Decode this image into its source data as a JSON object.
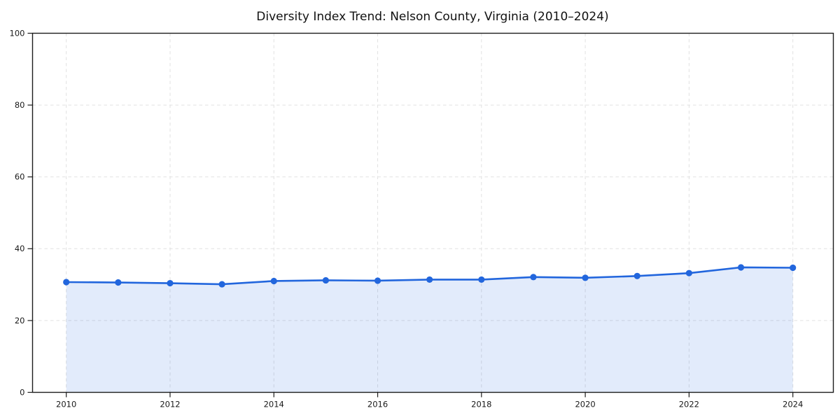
{
  "page": {
    "background": "#ffffff"
  },
  "chart_data": {
    "type": "line",
    "subtype": "line-with-area-fill-and-markers",
    "title": "Diversity Index Trend: Nelson County, Virginia (2010–2024)",
    "xlabel": "",
    "ylabel": "",
    "x": [
      2010,
      2011,
      2012,
      2013,
      2014,
      2015,
      2016,
      2017,
      2018,
      2019,
      2020,
      2021,
      2022,
      2023,
      2024
    ],
    "series": [
      {
        "name": "Diversity Index",
        "values": [
          30.7,
          30.6,
          30.4,
          30.1,
          31.0,
          31.2,
          31.1,
          31.4,
          31.4,
          32.1,
          31.9,
          32.4,
          33.2,
          34.8,
          34.7
        ]
      }
    ],
    "xlim": [
      2009.35,
      2024.78
    ],
    "ylim": [
      0,
      100
    ],
    "x_ticks": [
      2010,
      2012,
      2014,
      2016,
      2018,
      2020,
      2022,
      2024
    ],
    "y_ticks": [
      0,
      20,
      40,
      60,
      80,
      100
    ],
    "grid": true,
    "grid_style": "dashed",
    "legend_position": "none",
    "colors": {
      "line": "#2266dd",
      "marker": "#2266dd",
      "area_fill": "rgba(34,102,221,0.13)",
      "grid": "#e1e1e1",
      "spine": "#1c1c1c",
      "tick_label": "#1a1a1a",
      "title": "#111111",
      "background": "#ffffff"
    }
  }
}
